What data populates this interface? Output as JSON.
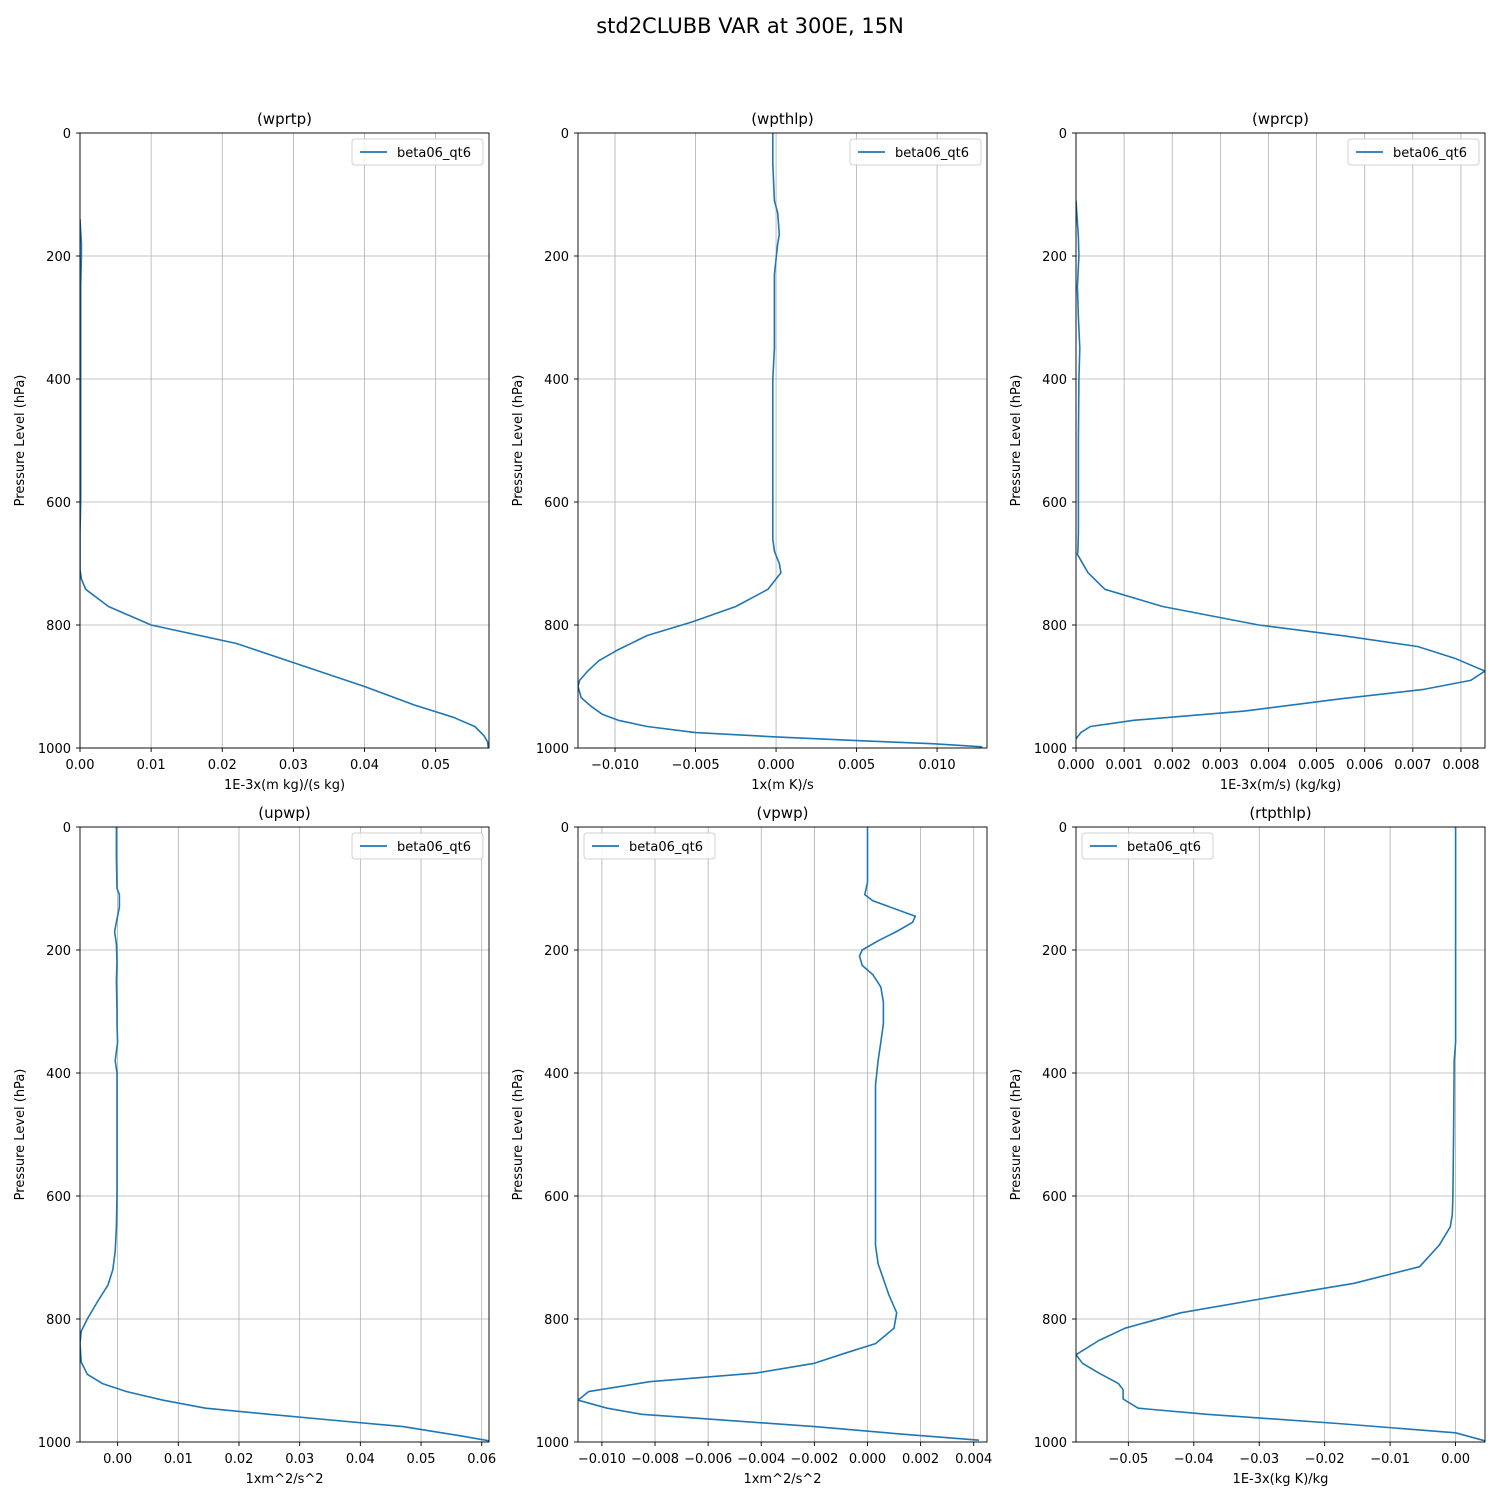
{
  "figure": {
    "title": "std2CLUBB VAR at 300E, 15N"
  },
  "chart_data": [
    {
      "type": "line",
      "title": "(wprtp)",
      "xlabel": "1E-3x(m kg)/(s kg)",
      "ylabel": "Pressure Level (hPa)",
      "xlim": [
        0,
        0.0575
      ],
      "ylim": [
        1000,
        0
      ],
      "xticks": [
        0,
        0.01,
        0.02,
        0.03,
        0.04,
        0.05
      ],
      "xtick_labels": [
        "0.00",
        "0.01",
        "0.02",
        "0.03",
        "0.04",
        "0.05"
      ],
      "yticks": [
        0,
        200,
        400,
        600,
        800,
        1000
      ],
      "ytick_labels": [
        "0",
        "200",
        "400",
        "600",
        "800",
        "1000"
      ],
      "grid": true,
      "legend": "upper right",
      "series": [
        {
          "name": "beta06_qt6",
          "color": "#1f77b4",
          "x": [
            0.0,
            0.0001,
            0.0002,
            0.0002,
            0.0001,
            0.0001,
            0.0001,
            0.0001,
            0.0001,
            0.0,
            0.0,
            0.0,
            0.0002,
            0.0008,
            0.004,
            0.01,
            0.022,
            0.031,
            0.04,
            0.047,
            0.0525,
            0.0555,
            0.0568,
            0.0573,
            0.0574
          ],
          "y": [
            140,
            160,
            180,
            200,
            250,
            300,
            400,
            500,
            600,
            650,
            690,
            710,
            725,
            742,
            770,
            800,
            830,
            865,
            900,
            930,
            950,
            965,
            980,
            990,
            1000
          ]
        }
      ]
    },
    {
      "type": "line",
      "title": "(wpthlp)",
      "xlabel": "1x(m K)/s",
      "ylabel": "Pressure Level (hPa)",
      "xlim": [
        -0.0123,
        0.0131
      ],
      "ylim": [
        1000,
        0
      ],
      "xticks": [
        -0.01,
        -0.005,
        0,
        0.005,
        0.01
      ],
      "xtick_labels": [
        "−0.010",
        "−0.005",
        "0.000",
        "0.005",
        "0.010"
      ],
      "yticks": [
        0,
        200,
        400,
        600,
        800,
        1000
      ],
      "ytick_labels": [
        "0",
        "200",
        "400",
        "600",
        "800",
        "1000"
      ],
      "grid": true,
      "legend": "upper right",
      "series": [
        {
          "name": "beta06_qt6",
          "color": "#1f77b4",
          "x": [
            -0.0002,
            -0.0002,
            -0.0001,
            0.0001,
            0.0002,
            0.0001,
            -0.0001,
            -0.0001,
            -0.0001,
            -0.0002,
            -0.0002,
            -0.0002,
            -0.0002,
            -0.0002,
            -0.0001,
            0.0002,
            0.0003,
            -0.0005,
            -0.0025,
            -0.0052,
            -0.008,
            -0.0098,
            -0.011,
            -0.0117,
            -0.0122,
            -0.0123,
            -0.0121,
            -0.0115,
            -0.0108,
            -0.0098,
            -0.008,
            -0.005,
            0.0,
            0.005,
            0.0097,
            0.0128
          ],
          "y": [
            0,
            50,
            110,
            130,
            165,
            180,
            230,
            300,
            350,
            400,
            500,
            600,
            640,
            660,
            680,
            700,
            715,
            742,
            770,
            795,
            817,
            840,
            858,
            875,
            890,
            900,
            918,
            932,
            945,
            955,
            965,
            975,
            982,
            988,
            993,
            998
          ]
        }
      ]
    },
    {
      "type": "line",
      "title": "(wprcp)",
      "xlabel": "1E-3x(m/s) (kg/kg)",
      "ylabel": "Pressure Level (hPa)",
      "xlim": [
        0,
        0.0085
      ],
      "ylim": [
        1000,
        0
      ],
      "xticks": [
        0,
        0.001,
        0.002,
        0.003,
        0.004,
        0.005,
        0.006,
        0.007,
        0.008
      ],
      "xtick_labels": [
        "0.000",
        "0.001",
        "0.002",
        "0.003",
        "0.004",
        "0.005",
        "0.006",
        "0.007",
        "0.008"
      ],
      "yticks": [
        0,
        200,
        400,
        600,
        800,
        1000
      ],
      "ytick_labels": [
        "0",
        "200",
        "400",
        "600",
        "800",
        "1000"
      ],
      "grid": true,
      "legend": "upper right",
      "series": [
        {
          "name": "beta06_qt6",
          "color": "#1f77b4",
          "x": [
            0.0,
            5e-05,
            6e-05,
            3e-05,
            5e-05,
            8e-05,
            6e-05,
            5e-05,
            5e-05,
            5e-05,
            4e-05,
            3e-05,
            0.00025,
            0.0006,
            0.0018,
            0.0038,
            0.0056,
            0.0071,
            0.0079,
            0.0085,
            0.0082,
            0.0072,
            0.0055,
            0.0035,
            0.0012,
            0.0003,
            0.0001,
            0.0
          ],
          "y": [
            110,
            170,
            200,
            250,
            300,
            350,
            400,
            500,
            600,
            650,
            680,
            685,
            715,
            742,
            770,
            800,
            818,
            835,
            855,
            875,
            890,
            905,
            920,
            940,
            955,
            965,
            975,
            985
          ]
        }
      ]
    },
    {
      "type": "line",
      "title": "(upwp)",
      "xlabel": "1xm^2/s^2",
      "ylabel": "Pressure Level (hPa)",
      "xlim": [
        -0.0062,
        0.0612
      ],
      "ylim": [
        1000,
        0
      ],
      "xticks": [
        0,
        0.01,
        0.02,
        0.03,
        0.04,
        0.05,
        0.06
      ],
      "xtick_labels": [
        "0.00",
        "0.01",
        "0.02",
        "0.03",
        "0.04",
        "0.05",
        "0.06"
      ],
      "yticks": [
        0,
        200,
        400,
        600,
        800,
        1000
      ],
      "ytick_labels": [
        "0",
        "200",
        "400",
        "600",
        "800",
        "1000"
      ],
      "grid": true,
      "legend": "upper right",
      "series": [
        {
          "name": "beta06_qt6",
          "color": "#1f77b4",
          "x": [
            -0.0002,
            -0.0002,
            -0.0001,
            0.0003,
            0.0003,
            -0.0005,
            -0.0002,
            -0.0001,
            -0.0002,
            -0.0001,
            -0.0001,
            0.0,
            -0.0004,
            -0.0001,
            -0.0001,
            -0.0001,
            -0.0002,
            -0.0004,
            -0.0008,
            -0.0016,
            -0.0032,
            -0.005,
            -0.006,
            -0.0062,
            -0.006,
            -0.005,
            -0.0025,
            0.0015,
            0.0075,
            0.0145,
            0.025,
            0.036,
            0.047,
            0.0565,
            0.0612
          ],
          "y": [
            0,
            50,
            100,
            110,
            130,
            170,
            190,
            220,
            250,
            300,
            320,
            350,
            380,
            400,
            500,
            600,
            650,
            690,
            720,
            745,
            770,
            800,
            820,
            840,
            870,
            890,
            905,
            918,
            932,
            945,
            955,
            965,
            975,
            990,
            998
          ]
        }
      ]
    },
    {
      "type": "line",
      "title": "(vpwp)",
      "xlabel": "1xm^2/s^2",
      "ylabel": "Pressure Level (hPa)",
      "xlim": [
        -0.0109,
        0.0045
      ],
      "ylim": [
        1000,
        0
      ],
      "xticks": [
        -0.01,
        -0.008,
        -0.006,
        -0.004,
        -0.002,
        0,
        0.002,
        0.004
      ],
      "xtick_labels": [
        "−0.010",
        "−0.008",
        "−0.006",
        "−0.004",
        "−0.002",
        "0.000",
        "0.002",
        "0.004"
      ],
      "yticks": [
        0,
        200,
        400,
        600,
        800,
        1000
      ],
      "ytick_labels": [
        "0",
        "200",
        "400",
        "600",
        "800",
        "1000"
      ],
      "grid": true,
      "legend": "upper left",
      "series": [
        {
          "name": "beta06_qt6",
          "color": "#1f77b4",
          "x": [
            0.0,
            0.0,
            -0.0001,
            0.0002,
            0.0018,
            0.0017,
            0.0011,
            0.0004,
            -0.0002,
            -0.0003,
            -0.0002,
            0.0002,
            0.0005,
            0.0006,
            0.0006,
            0.0005,
            0.0004,
            0.0003,
            0.0003,
            0.0003,
            0.0003,
            0.0003,
            0.0004,
            0.0008,
            0.0011,
            0.001,
            0.0003,
            -0.0008,
            -0.002,
            -0.0042,
            -0.0082,
            -0.0105,
            -0.0109,
            -0.0098,
            -0.0085,
            -0.0055,
            -0.002,
            0.0015,
            0.0042
          ],
          "y": [
            0,
            90,
            110,
            120,
            145,
            155,
            170,
            185,
            200,
            210,
            225,
            240,
            260,
            285,
            320,
            350,
            380,
            420,
            500,
            600,
            650,
            680,
            710,
            760,
            790,
            815,
            840,
            855,
            872,
            888,
            902,
            918,
            932,
            945,
            955,
            964,
            975,
            988,
            997
          ]
        }
      ]
    },
    {
      "type": "line",
      "title": "(rtpthlp)",
      "xlabel": "1E-3x(kg K)/kg",
      "ylabel": "Pressure Level (hPa)",
      "xlim": [
        -0.058,
        0.0045
      ],
      "ylim": [
        1000,
        0
      ],
      "xticks": [
        -0.05,
        -0.04,
        -0.03,
        -0.02,
        -0.01,
        0
      ],
      "xtick_labels": [
        "−0.05",
        "−0.04",
        "−0.03",
        "−0.02",
        "−0.01",
        "0.00"
      ],
      "yticks": [
        0,
        200,
        400,
        600,
        800,
        1000
      ],
      "ytick_labels": [
        "0",
        "200",
        "400",
        "600",
        "800",
        "1000"
      ],
      "grid": true,
      "legend": "upper left",
      "series": [
        {
          "name": "beta06_qt6",
          "color": "#1f77b4",
          "x": [
            0.0,
            0.0,
            0.0,
            -0.0002,
            -0.0003,
            -0.0004,
            -0.0005,
            -0.0008,
            -0.0025,
            -0.0055,
            -0.0155,
            -0.0285,
            -0.042,
            -0.0505,
            -0.0545,
            -0.058,
            -0.057,
            -0.0545,
            -0.0515,
            -0.0508,
            -0.0508,
            -0.0485,
            -0.038,
            -0.018,
            0.0,
            0.0045
          ],
          "y": [
            0,
            200,
            350,
            380,
            500,
            600,
            630,
            650,
            680,
            715,
            742,
            765,
            790,
            815,
            835,
            858,
            872,
            888,
            905,
            915,
            930,
            945,
            955,
            970,
            985,
            998
          ]
        }
      ]
    }
  ]
}
